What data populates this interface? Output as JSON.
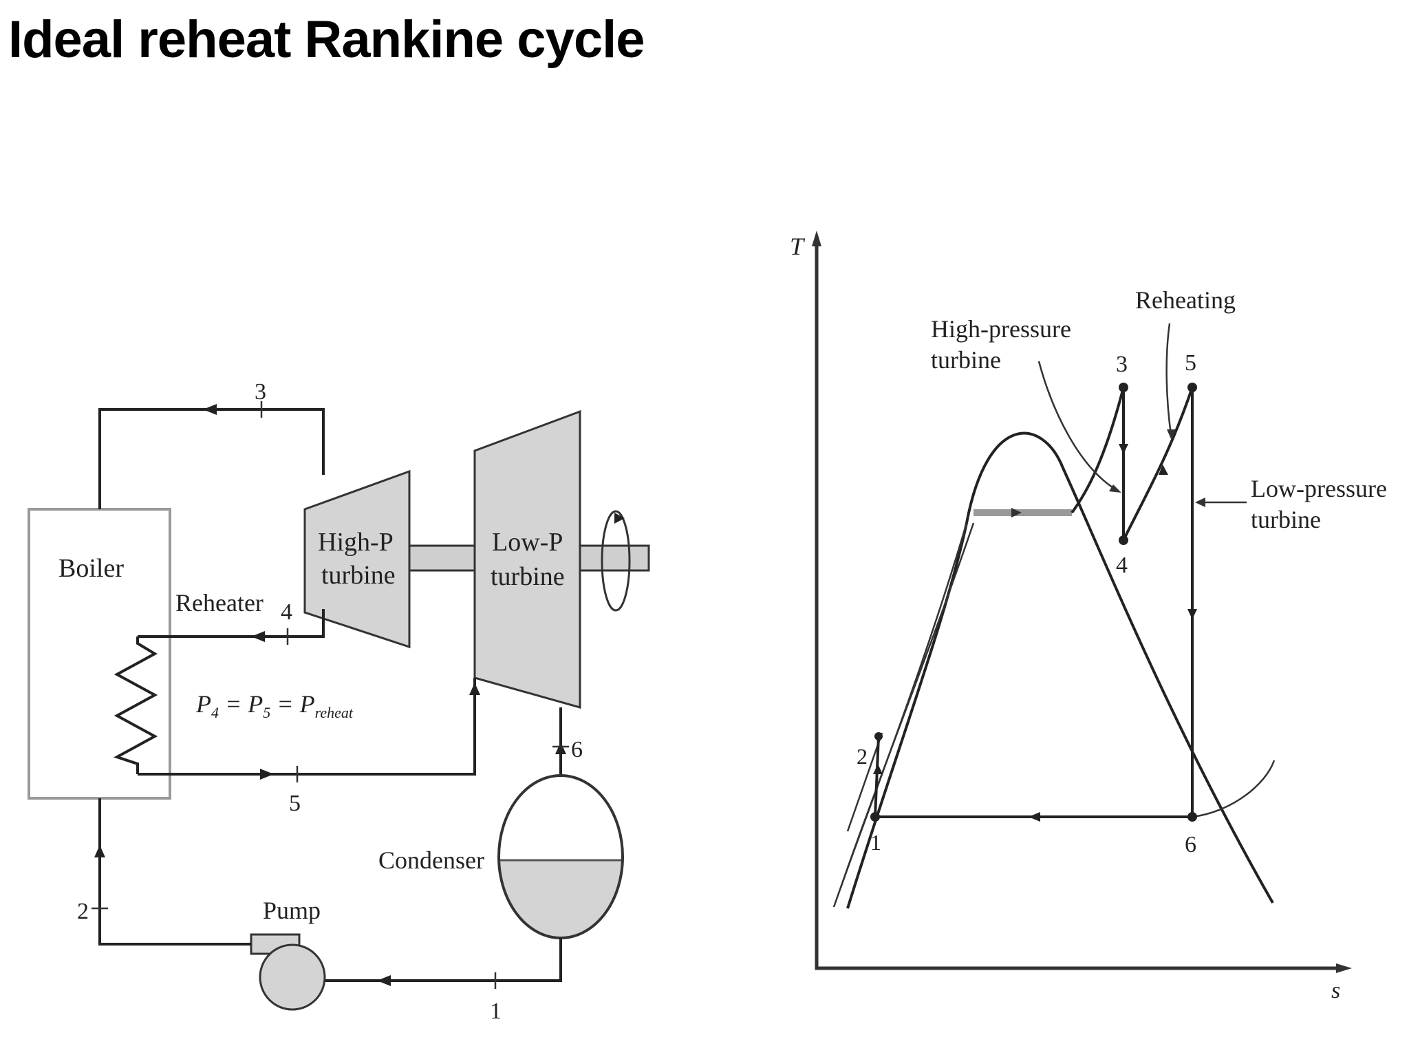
{
  "title": "Ideal reheat Rankine cycle",
  "schematic": {
    "boiler": "Boiler",
    "reheater": "Reheater",
    "hp_turbine": [
      "High-P",
      "turbine"
    ],
    "lp_turbine": [
      "Low-P",
      "turbine"
    ],
    "condenser": "Condenser",
    "pump": "Pump",
    "pressure_relation": {
      "p4": "P",
      "sub4": "4",
      "eq1": " = ",
      "p5": "P",
      "sub5": "5",
      "eq2": " = ",
      "pr": "P",
      "subr": "reheat"
    },
    "states": {
      "s1": "1",
      "s2": "2",
      "s3": "3",
      "s4": "4",
      "s5": "5",
      "s6": "6"
    }
  },
  "ts_diagram": {
    "y_axis": "T",
    "x_axis": "s",
    "hp_label": [
      "High-pressure",
      "turbine"
    ],
    "reheat_label": "Reheating",
    "lp_label": [
      "Low-pressure",
      "turbine"
    ],
    "states": {
      "s1": "1",
      "s2": "2",
      "s3": "3",
      "s4": "4",
      "s5": "5",
      "s6": "6"
    }
  }
}
